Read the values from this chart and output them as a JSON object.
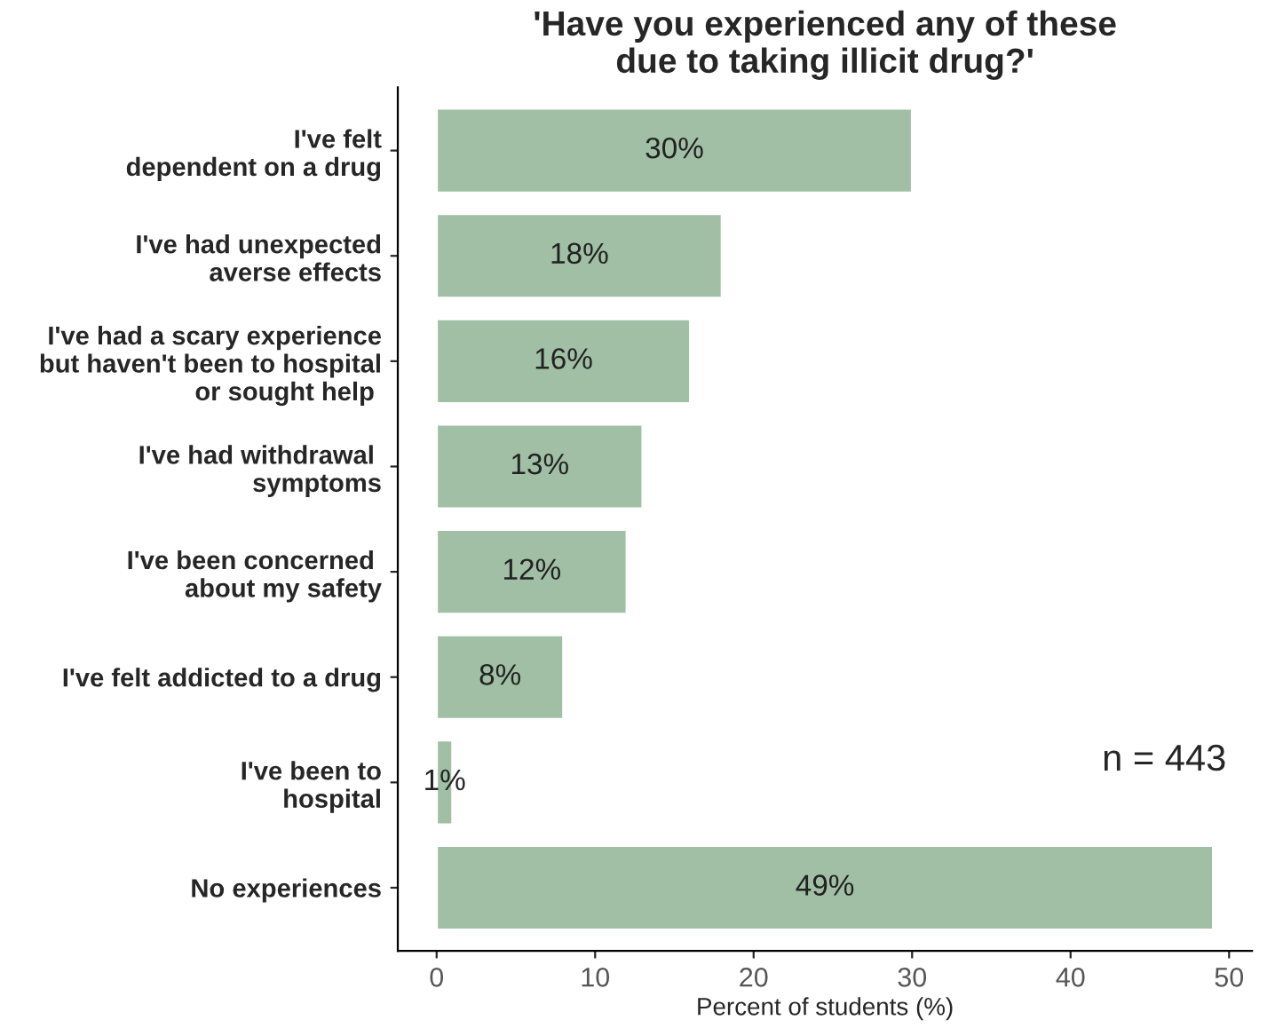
{
  "chart_data": {
    "type": "bar",
    "orientation": "horizontal",
    "title": "'Have you experienced any of these\ndue to taking illicit drug?'",
    "xlabel": "Percent of students (%)",
    "categories": [
      "I've felt\ndependent on a drug",
      "I've had unexpected\naverse effects",
      "I've had a scary experience\nbut haven't been to hospital\nor sought help ",
      "I've had withdrawal \nsymptoms",
      "I've been concerned \nabout my safety",
      "I've felt addicted to a drug",
      "I've been to\nhospital",
      "No experiences"
    ],
    "values": [
      30,
      18,
      16,
      13,
      12,
      8,
      1,
      49
    ],
    "value_labels": [
      "30%",
      "18%",
      "16%",
      "13%",
      "12%",
      "8%",
      "1%",
      "49%"
    ],
    "color": "#a0bfa4",
    "xlim": [
      -2.45,
      51.45
    ],
    "xticks": [
      0,
      10,
      20,
      30,
      40,
      50
    ],
    "grid": false,
    "legend": false,
    "annotations": [
      "n = 443"
    ]
  }
}
